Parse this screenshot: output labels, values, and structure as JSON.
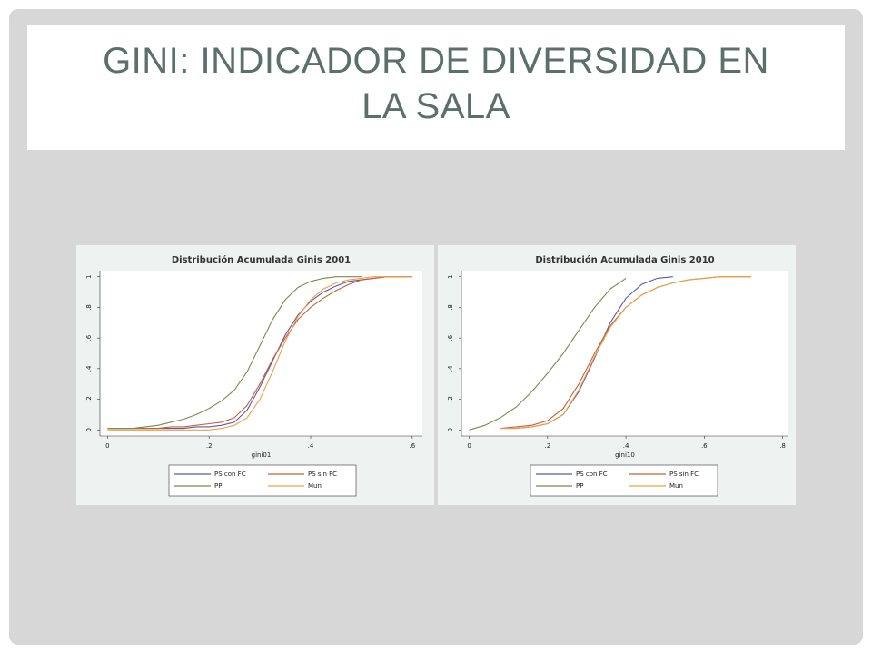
{
  "slide": {
    "title": "GINI: INDICADOR DE DIVERSIDAD EN LA SALA"
  },
  "chart_data": [
    {
      "type": "line",
      "title": "Distribución Acumulada Ginis 2001",
      "xlabel": "gini01",
      "x": [
        0,
        0.025,
        0.05,
        0.075,
        0.1,
        0.125,
        0.15,
        0.175,
        0.2,
        0.225,
        0.25,
        0.275,
        0.3,
        0.325,
        0.35,
        0.375,
        0.4,
        0.425,
        0.45,
        0.475,
        0.5,
        0.525,
        0.55,
        0.575,
        0.6
      ],
      "series": [
        {
          "name": "PS con FC",
          "color": "#5a5aa8",
          "values": [
            0.01,
            0.01,
            0.01,
            0.01,
            0.01,
            0.01,
            0.01,
            0.02,
            0.02,
            0.03,
            0.05,
            0.13,
            0.28,
            0.45,
            0.62,
            0.75,
            0.84,
            0.9,
            0.94,
            0.97,
            0.98,
            0.99,
            1,
            1,
            1
          ]
        },
        {
          "name": "PS sin FC",
          "color": "#c8603a",
          "values": [
            0.01,
            0.01,
            0.01,
            0.01,
            0.01,
            0.02,
            0.02,
            0.03,
            0.04,
            0.05,
            0.08,
            0.16,
            0.3,
            0.46,
            0.6,
            0.72,
            0.8,
            0.86,
            0.91,
            0.95,
            0.98,
            0.99,
            1,
            1,
            1
          ]
        },
        {
          "name": "PP",
          "color": "#7a8a50",
          "values": [
            0.01,
            0.01,
            0.01,
            0.02,
            0.03,
            0.05,
            0.07,
            0.1,
            0.14,
            0.19,
            0.26,
            0.38,
            0.55,
            0.72,
            0.85,
            0.93,
            0.97,
            0.99,
            1,
            1,
            1,
            null,
            null,
            null,
            null
          ]
        },
        {
          "name": "Mun",
          "color": "#f0a040",
          "values": [
            0,
            0,
            0,
            0,
            0,
            0,
            0,
            0,
            0,
            0.01,
            0.03,
            0.08,
            0.2,
            0.38,
            0.58,
            0.74,
            0.85,
            0.92,
            0.96,
            0.98,
            0.99,
            1,
            1,
            1,
            1
          ]
        }
      ],
      "xlim": [
        -0.015,
        0.62
      ],
      "ylim": [
        -0.04,
        1.04
      ],
      "xticks": [
        0,
        {
          "value": 0.2,
          "label": ".2"
        },
        {
          "value": 0.4,
          "label": ".4"
        },
        {
          "value": 0.6,
          "label": ".6"
        }
      ],
      "yticks": [
        0,
        {
          "value": 0.2,
          "label": ".2"
        },
        {
          "value": 0.4,
          "label": ".4"
        },
        {
          "value": 0.6,
          "label": ".6"
        },
        {
          "value": 0.8,
          "label": ".8"
        },
        1
      ],
      "grid": false
    },
    {
      "type": "line",
      "title": "Distribución Acumulada Ginis 2010",
      "xlabel": "gini10",
      "x": [
        0,
        0.04,
        0.08,
        0.12,
        0.16,
        0.2,
        0.24,
        0.28,
        0.32,
        0.36,
        0.4,
        0.44,
        0.48,
        0.52,
        0.56,
        0.6,
        0.64,
        0.68,
        0.72
      ],
      "series": [
        {
          "name": "PS con FC",
          "color": "#5a5aa8",
          "values": [
            null,
            null,
            0.01,
            0.01,
            0.02,
            0.04,
            0.1,
            0.25,
            0.47,
            0.7,
            0.86,
            0.95,
            0.99,
            1,
            null,
            null,
            null,
            null,
            null
          ]
        },
        {
          "name": "PS sin FC",
          "color": "#c8603a",
          "values": [
            null,
            null,
            0.01,
            0.02,
            0.03,
            0.06,
            0.14,
            0.3,
            0.5,
            0.68,
            0.8,
            0.88,
            0.93,
            0.96,
            0.98,
            0.99,
            1,
            1,
            1
          ]
        },
        {
          "name": "PP",
          "color": "#7a8a50",
          "values": [
            0,
            0.03,
            0.08,
            0.15,
            0.25,
            0.37,
            0.5,
            0.65,
            0.8,
            0.92,
            0.99,
            null,
            null,
            null,
            null,
            null,
            null,
            null,
            null
          ]
        },
        {
          "name": "Mun",
          "color": "#f0a040",
          "values": [
            null,
            null,
            0.01,
            0.01,
            0.02,
            0.04,
            0.1,
            0.26,
            0.48,
            0.67,
            0.8,
            0.88,
            0.93,
            0.96,
            0.98,
            0.99,
            1,
            1,
            1
          ]
        }
      ],
      "xlim": [
        -0.02,
        0.815
      ],
      "ylim": [
        -0.04,
        1.04
      ],
      "xticks": [
        0,
        {
          "value": 0.2,
          "label": ".2"
        },
        {
          "value": 0.4,
          "label": ".4"
        },
        {
          "value": 0.6,
          "label": ".6"
        },
        {
          "value": 0.8,
          "label": ".8"
        }
      ],
      "yticks": [
        0,
        {
          "value": 0.2,
          "label": ".2"
        },
        {
          "value": 0.4,
          "label": ".4"
        },
        {
          "value": 0.6,
          "label": ".6"
        },
        {
          "value": 0.8,
          "label": ".8"
        },
        1
      ],
      "grid": false
    }
  ]
}
